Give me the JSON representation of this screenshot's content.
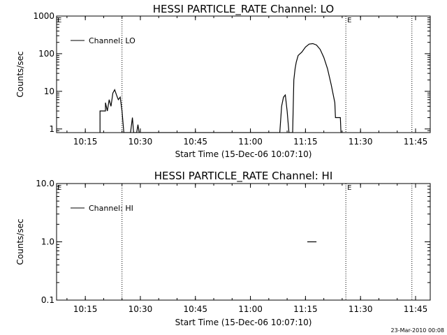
{
  "footer": {
    "timestamp": "23-Mar-2010 00:08"
  },
  "chart_data": [
    {
      "type": "line",
      "title": "HESSI PARTICLE_RATE Channel: LO",
      "xlabel": "Start Time (15-Dec-06 10:07:10)",
      "ylabel": "Counts/sec",
      "yscale": "log",
      "xlim": [
        "10:07:10",
        "11:49:00"
      ],
      "ylim": [
        0.8,
        1000
      ],
      "x_ticks": [
        "10:15",
        "10:30",
        "10:45",
        "11:00",
        "11:15",
        "11:30",
        "11:45"
      ],
      "y_ticks": [
        "1",
        "10",
        "100",
        "1000"
      ],
      "legend": {
        "position": "top-left"
      },
      "series": [
        {
          "name": "Channel: LO",
          "points": [
            [
              "10:19:00",
              0.8
            ],
            [
              "10:19:00",
              3
            ],
            [
              "10:20:30",
              3
            ],
            [
              "10:20:30",
              5
            ],
            [
              "10:21:00",
              3
            ],
            [
              "10:21:30",
              6
            ],
            [
              "10:22:00",
              4
            ],
            [
              "10:22:30",
              9
            ],
            [
              "10:23:00",
              11
            ],
            [
              "10:23:30",
              8
            ],
            [
              "10:24:00",
              6
            ],
            [
              "10:24:30",
              7
            ],
            [
              "10:25:00",
              3
            ],
            [
              "10:25:30",
              0.8
            ],
            [
              "10:27:20",
              0.8
            ],
            [
              "10:27:50",
              2
            ],
            [
              "10:28:10",
              0.8
            ],
            [
              "10:29:00",
              0.8
            ],
            [
              "10:29:20",
              1.3
            ],
            [
              "10:29:40",
              0.8
            ],
            [
              "11:08:00",
              0.8
            ],
            [
              "11:08:30",
              4
            ],
            [
              "11:09:00",
              7
            ],
            [
              "11:09:30",
              8
            ],
            [
              "11:10:00",
              3
            ],
            [
              "11:10:30",
              0.8
            ],
            [
              "11:11:30",
              0.8
            ],
            [
              "11:11:50",
              20
            ],
            [
              "11:12:10",
              40
            ],
            [
              "11:12:30",
              60
            ],
            [
              "11:13:00",
              90
            ],
            [
              "11:14:00",
              110
            ],
            [
              "11:15:00",
              150
            ],
            [
              "11:16:00",
              180
            ],
            [
              "11:17:00",
              185
            ],
            [
              "11:18:00",
              170
            ],
            [
              "11:19:00",
              130
            ],
            [
              "11:20:00",
              80
            ],
            [
              "11:21:00",
              40
            ],
            [
              "11:22:00",
              15
            ],
            [
              "11:23:00",
              5
            ],
            [
              "11:23:10",
              2
            ],
            [
              "11:24:30",
              2
            ],
            [
              "11:24:40",
              0.8
            ]
          ]
        }
      ],
      "vlines": [
        {
          "time": "10:25:00",
          "label": ""
        },
        {
          "time": "11:26:00",
          "label": "E"
        },
        {
          "time": "11:44:00",
          "label": ""
        }
      ],
      "edge_marks": [
        {
          "time": "10:07:10",
          "label": "E"
        }
      ]
    },
    {
      "type": "line",
      "title": "HESSI PARTICLE_RATE Channel: HI",
      "xlabel": "Start Time (15-Dec-06 10:07:10)",
      "ylabel": "Counts/sec",
      "yscale": "log",
      "xlim": [
        "10:07:10",
        "11:49:00"
      ],
      "ylim": [
        0.1,
        10
      ],
      "x_ticks": [
        "10:15",
        "10:30",
        "10:45",
        "11:00",
        "11:15",
        "11:30",
        "11:45"
      ],
      "y_ticks": [
        "0.1",
        "1.0",
        "10.0"
      ],
      "legend": {
        "position": "top-left"
      },
      "series": [
        {
          "name": "Channel: HI",
          "points": [
            [
              "11:15:30",
              1.0
            ],
            [
              "11:16:15",
              1.0
            ],
            [
              "11:16:30",
              1.0
            ],
            [
              "11:18:00",
              1.0
            ]
          ]
        }
      ],
      "vlines": [
        {
          "time": "10:25:00",
          "label": ""
        },
        {
          "time": "11:26:00",
          "label": "E"
        },
        {
          "time": "11:44:00",
          "label": ""
        }
      ],
      "edge_marks": [
        {
          "time": "10:07:10",
          "label": "E"
        }
      ]
    }
  ]
}
